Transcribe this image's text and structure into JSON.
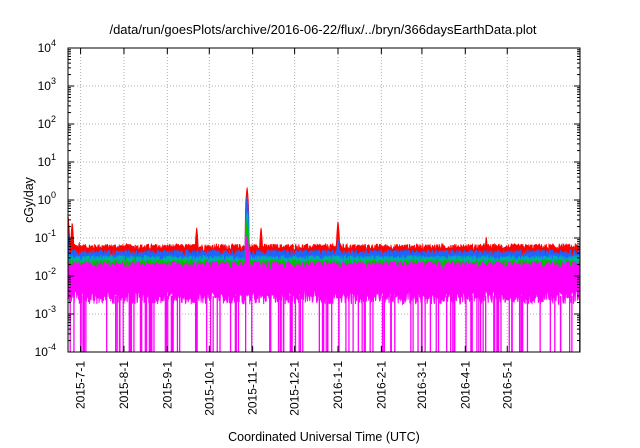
{
  "chart_data": {
    "type": "line",
    "title": "/data/run/goesPlots/archive/2016-06-22/flux/../bryn/366daysEarthData.plot",
    "xlabel": "Coordinated Universal Time (UTC)",
    "ylabel": "cGy/day",
    "yscale": "log",
    "ylim": [
      0.0001,
      10000
    ],
    "xlim": [
      "2015-06-22",
      "2016-06-22"
    ],
    "grid": true,
    "y_ticks": [
      {
        "base": "10",
        "exp": "-4"
      },
      {
        "base": "10",
        "exp": "-3"
      },
      {
        "base": "10",
        "exp": "-2"
      },
      {
        "base": "10",
        "exp": "-1"
      },
      {
        "base": "10",
        "exp": "0"
      },
      {
        "base": "10",
        "exp": "1"
      },
      {
        "base": "10",
        "exp": "2"
      },
      {
        "base": "10",
        "exp": "3"
      },
      {
        "base": "10",
        "exp": "4"
      }
    ],
    "x_ticks": [
      "2015-7-1",
      "2015-8-1",
      "2015-9-1",
      "2015-10-1",
      "2015-11-1",
      "2015-12-1",
      "2016-1-1",
      "2016-2-1",
      "2016-3-1",
      "2016-4-1",
      "2016-5-1"
    ],
    "series": [
      {
        "color": "#ff0000",
        "baseline": 0.05,
        "points": [
          [
            "2015-06-22",
            0.4
          ],
          [
            "2015-06-25",
            0.26
          ],
          [
            "2015-06-30",
            0.08
          ],
          [
            "2015-09-22",
            0.19
          ],
          [
            "2015-10-28",
            2.2
          ],
          [
            "2015-11-07",
            0.19
          ],
          [
            "2016-01-01",
            0.28
          ],
          [
            "2016-04-16",
            0.11
          ],
          [
            "2016-06-22",
            0.07
          ]
        ]
      },
      {
        "color": "#1e64ff",
        "baseline": 0.035,
        "points": [
          [
            "2015-06-22",
            0.15
          ],
          [
            "2015-10-28",
            1.3
          ],
          [
            "2016-01-01",
            0.1
          ],
          [
            "2016-06-22",
            0.05
          ]
        ]
      },
      {
        "color": "#00b0b0",
        "baseline": 0.025,
        "points": [
          [
            "2015-10-28",
            0.5
          ],
          [
            "2016-06-22",
            0.03
          ]
        ]
      },
      {
        "color": "#00c000",
        "baseline": 0.02,
        "points": [
          [
            "2015-10-28",
            0.3
          ],
          [
            "2016-06-22",
            0.025
          ]
        ]
      },
      {
        "color": "#ff00ff",
        "baseline_low": 0.003,
        "baseline_high": 0.015,
        "points": [
          [
            "2015-10-28",
            0.12
          ],
          [
            "2016-06-22",
            0.015
          ]
        ]
      }
    ]
  },
  "colors": {
    "grid": "#b0b0b0",
    "frame": "#000000"
  }
}
